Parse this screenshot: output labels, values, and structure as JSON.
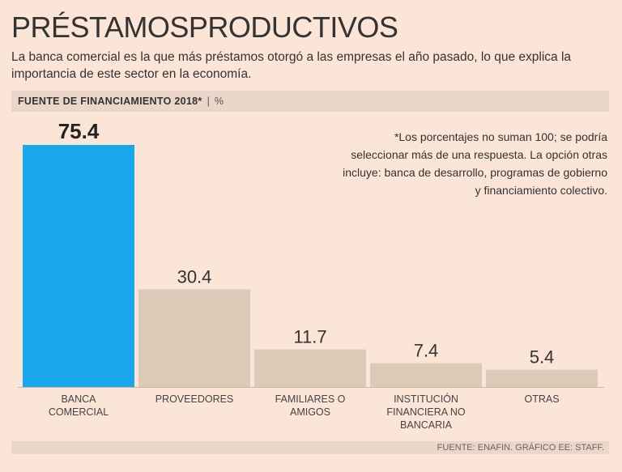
{
  "header": {
    "title": "PRÉSTAMOSPRODUCTIVOS",
    "subtitle": "La banca comercial es la que más préstamos otorgó a las empresas el año pasado, lo que explica la importancia de este sector en la economía."
  },
  "band": {
    "label": "FUENTE DE FINANCIAMIENTO 2018*",
    "separator": "|",
    "unit": "%"
  },
  "note": "*Los porcentajes no suman 100; se podría seleccionar más de una respuesta. La opción otras incluye: banca de desarrollo, programas de gobierno y financiamiento colectivo.",
  "footer": "FUENTE: ENAFIN. GRÁFICO EE: STAFF.",
  "colors": {
    "highlight": "#1aa7ec",
    "bar": "#dcc9b8",
    "background": "#fbe5d6",
    "band": "#ead7c9"
  },
  "chart_data": {
    "type": "bar",
    "title": "FUENTE DE FINANCIAMIENTO 2018*",
    "ylabel": "%",
    "xlabel": "",
    "ylim": [
      0,
      75.4
    ],
    "grid": false,
    "categories": [
      [
        "BANCA",
        "COMERCIAL"
      ],
      [
        "PROVEEDORES"
      ],
      [
        "FAMILIARES O",
        "AMIGOS"
      ],
      [
        "INSTITUCIÓN",
        "FINANCIERA NO",
        "BANCARIA"
      ],
      [
        "OTRAS"
      ]
    ],
    "values": [
      75.4,
      30.4,
      11.7,
      7.4,
      5.4
    ],
    "value_labels": [
      "75.4",
      "30.4",
      "11.7",
      "7.4",
      "5.4"
    ],
    "highlight_index": 0
  }
}
